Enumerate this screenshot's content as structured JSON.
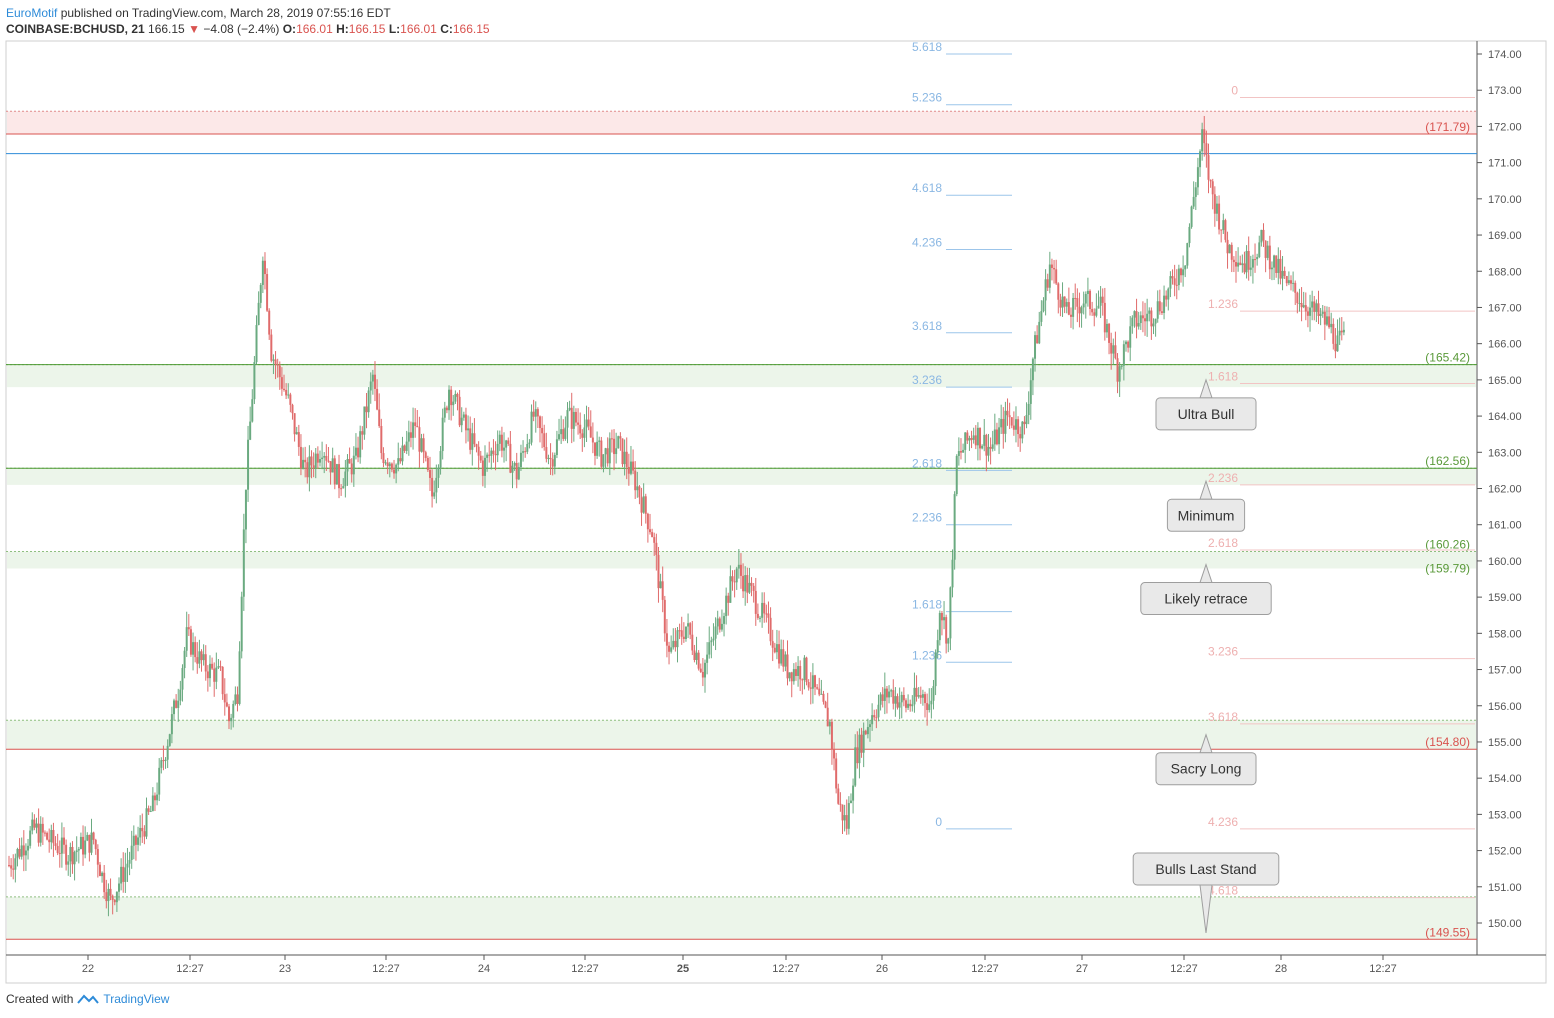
{
  "header": {
    "author": "EuroMotif",
    "published": "published on TradingView.com, March 28, 2019 07:55:16 EDT"
  },
  "symbol": {
    "ticker": "COINBASE:BCHUSD, 21",
    "last": "166.15",
    "change": "−4.08 (−2.4%)",
    "o_label": "O:",
    "o": "166.01",
    "h_label": "H:",
    "h": "166.15",
    "l_label": "L:",
    "l": "166.01",
    "c_label": "C:",
    "c": "166.15"
  },
  "footer": {
    "created_with": "Created with",
    "brand": "TradingView"
  },
  "colors": {
    "up": "#6aaa80",
    "down": "#e06b6b",
    "fib_blue": "#2e8bd8",
    "green_zone": "#5a9a3a",
    "red_zone": "#d9534f"
  },
  "chart_data": {
    "type": "candlestick",
    "ylim": [
      148.2,
      174.4
    ],
    "y_ticks": [
      "174.00",
      "173.00",
      "172.00",
      "171.00",
      "170.00",
      "169.00",
      "168.00",
      "167.00",
      "166.00",
      "165.00",
      "164.00",
      "163.00",
      "162.00",
      "161.00",
      "160.00",
      "159.00",
      "158.00",
      "157.00",
      "156.00",
      "155.00",
      "154.00",
      "153.00",
      "152.00",
      "151.00",
      "150.00"
    ],
    "x_ticks": [
      {
        "label": "22",
        "bold": false
      },
      {
        "label": "12:27",
        "bold": false
      },
      {
        "label": "23",
        "bold": false
      },
      {
        "label": "12:27",
        "bold": false
      },
      {
        "label": "24",
        "bold": false
      },
      {
        "label": "12:27",
        "bold": false
      },
      {
        "label": "25",
        "bold": true
      },
      {
        "label": "12:27",
        "bold": false
      },
      {
        "label": "26",
        "bold": false
      },
      {
        "label": "12:27",
        "bold": false
      },
      {
        "label": "27",
        "bold": false
      },
      {
        "label": "12:27",
        "bold": false
      },
      {
        "label": "28",
        "bold": false
      },
      {
        "label": "12:27",
        "bold": false
      }
    ],
    "price_path": [
      [
        0,
        151.6
      ],
      [
        3,
        152.6
      ],
      [
        7,
        151.9
      ],
      [
        10,
        152.3
      ],
      [
        11,
        151.3
      ],
      [
        12,
        150.6
      ],
      [
        15,
        152.2
      ],
      [
        17,
        153.2
      ],
      [
        20,
        156.4
      ],
      [
        21,
        157.9
      ],
      [
        23,
        157.1
      ],
      [
        25,
        156.8
      ],
      [
        26,
        155.6
      ],
      [
        27,
        156.4
      ],
      [
        28,
        162.2
      ],
      [
        30,
        168.6
      ],
      [
        31,
        165.8
      ],
      [
        33,
        164.4
      ],
      [
        35,
        162.4
      ],
      [
        37,
        163.2
      ],
      [
        39,
        162.2
      ],
      [
        41,
        162.8
      ],
      [
        43,
        165.1
      ],
      [
        44,
        163.0
      ],
      [
        46,
        162.6
      ],
      [
        48,
        163.8
      ],
      [
        50,
        161.8
      ],
      [
        52,
        164.8
      ],
      [
        54,
        163.6
      ],
      [
        56,
        162.6
      ],
      [
        58,
        163.4
      ],
      [
        60,
        162.4
      ],
      [
        62,
        164.0
      ],
      [
        64,
        162.8
      ],
      [
        66,
        164.0
      ],
      [
        68,
        163.7
      ],
      [
        70,
        162.9
      ],
      [
        72,
        163.2
      ],
      [
        74,
        162.2
      ],
      [
        76,
        160.8
      ],
      [
        78,
        157.4
      ],
      [
        80,
        158.2
      ],
      [
        82,
        157.0
      ],
      [
        84,
        158.4
      ],
      [
        86,
        159.8
      ],
      [
        88,
        159.0
      ],
      [
        90,
        158.0
      ],
      [
        92,
        157.0
      ],
      [
        94,
        157.0
      ],
      [
        96,
        156.0
      ],
      [
        97,
        155.5
      ],
      [
        98,
        153.3
      ],
      [
        99,
        152.7
      ],
      [
        100,
        154.6
      ],
      [
        102,
        155.8
      ],
      [
        104,
        156.4
      ],
      [
        106,
        156.0
      ],
      [
        108,
        156.3
      ],
      [
        109,
        156.0
      ],
      [
        110,
        158.8
      ],
      [
        111,
        157.8
      ],
      [
        112,
        162.8
      ],
      [
        114,
        163.6
      ],
      [
        116,
        163.1
      ],
      [
        118,
        164.0
      ],
      [
        120,
        163.6
      ],
      [
        121,
        165.6
      ],
      [
        123,
        168.2
      ],
      [
        125,
        166.8
      ],
      [
        127,
        167.2
      ],
      [
        129,
        167.0
      ],
      [
        131,
        165.3
      ],
      [
        133,
        166.6
      ],
      [
        135,
        166.8
      ],
      [
        137,
        167.4
      ],
      [
        139,
        168.4
      ],
      [
        141,
        171.7
      ],
      [
        142,
        170.3
      ],
      [
        144,
        168.7
      ],
      [
        146,
        168.2
      ],
      [
        148,
        168.8
      ],
      [
        150,
        168.0
      ],
      [
        151,
        167.6
      ],
      [
        152,
        167.4
      ],
      [
        154,
        166.9
      ],
      [
        156,
        166.5
      ],
      [
        157,
        166.0
      ],
      [
        158,
        166.15
      ]
    ],
    "n_candles": 158,
    "zones": [
      {
        "label": "(171.79)",
        "from": 171.79,
        "to": 172.42,
        "color": "red",
        "line": 171.79
      },
      {
        "label": "(165.42)",
        "from": 164.8,
        "to": 165.42,
        "color": "green",
        "line": 165.42
      },
      {
        "label": "(162.56)",
        "from": 162.1,
        "to": 162.56,
        "color": "green",
        "line": 162.56
      },
      {
        "label": "(160.26)",
        "from": 159.79,
        "to": 160.26,
        "color": "green",
        "line": null
      },
      {
        "label": "(159.79)",
        "from": null,
        "to": null,
        "color": "green",
        "line": null
      },
      {
        "label": "(154.80)",
        "from": 154.8,
        "to": 155.6,
        "color": "greenred",
        "line": 154.8
      },
      {
        "label": "(149.55)",
        "from": 149.55,
        "to": 150.72,
        "color": "greenred",
        "line": 149.55
      }
    ],
    "fib_up": [
      {
        "label": "5.618",
        "price": 174.0
      },
      {
        "label": "5.236",
        "price": 172.6
      },
      {
        "label": "4.618",
        "price": 170.1
      },
      {
        "label": "4.236",
        "price": 168.6
      },
      {
        "label": "3.618",
        "price": 166.3
      },
      {
        "label": "3.236",
        "price": 164.8
      },
      {
        "label": "2.618",
        "price": 162.5
      },
      {
        "label": "2.236",
        "price": 161.0
      },
      {
        "label": "1.618",
        "price": 158.6
      },
      {
        "label": "1.236",
        "price": 157.2
      },
      {
        "label": "0",
        "price": 152.6
      }
    ],
    "fib_down": [
      {
        "label": "0",
        "price": 172.8
      },
      {
        "label": "1.236",
        "price": 166.9
      },
      {
        "label": "1.618",
        "price": 164.9
      },
      {
        "label": "2.236",
        "price": 162.1
      },
      {
        "label": "2.618",
        "price": 160.3
      },
      {
        "label": "3.236",
        "price": 157.3
      },
      {
        "label": "3.618",
        "price": 155.5
      },
      {
        "label": "4.236",
        "price": 152.6
      },
      {
        "label": "4.618",
        "price": 150.7
      }
    ],
    "annotations": [
      {
        "text": "Ultra Bull",
        "price": 165.0,
        "direction": "up"
      },
      {
        "text": "Minimum",
        "price": 162.2,
        "direction": "up"
      },
      {
        "text": "Likely retrace",
        "price": 159.9,
        "direction": "up"
      },
      {
        "text": "Sacry Long",
        "price": 155.2,
        "direction": "up"
      },
      {
        "text": "Bulls Last Stand",
        "price": 150.0,
        "direction": "down"
      }
    ]
  }
}
